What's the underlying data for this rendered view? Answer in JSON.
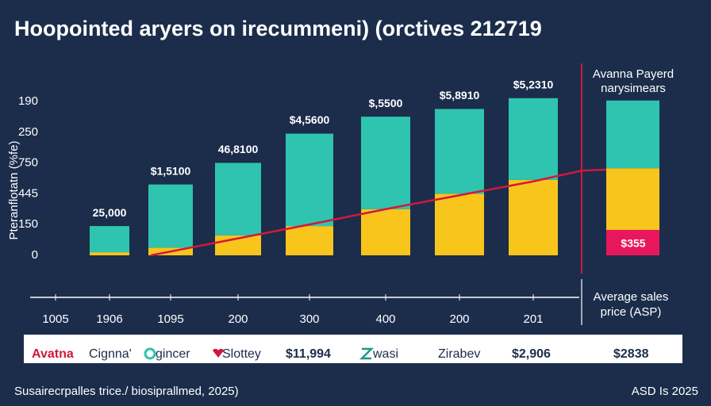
{
  "chart_data": {
    "type": "bar",
    "title": "Hoopointed aryers on irecummeni) (orctives 212719",
    "y_axis_label": "Pteranflotatn (%fe)",
    "y_axis_labels": [
      "190",
      "250",
      "750",
      "445",
      "150",
      "0"
    ],
    "categories": [
      "1005",
      "1906",
      "1095",
      "200",
      "300",
      "400",
      "200",
      "201"
    ],
    "ylim": [
      0,
      105
    ],
    "series": [
      {
        "color": "#f8c51c",
        "values": [
          null,
          2,
          5,
          13,
          19,
          30,
          40,
          49
        ]
      },
      {
        "color": "#2ec4b0",
        "values": [
          null,
          17,
          41,
          47,
          60,
          60,
          55,
          53
        ]
      }
    ],
    "bar_labels": [
      null,
      "25,000",
      "$1,5100",
      "46,8100",
      "$4,5600",
      "$,5500",
      "$5,8910",
      "$5,2310"
    ],
    "line": {
      "color": "#d3173b",
      "values": [
        null,
        null,
        0,
        11,
        20,
        30,
        39,
        48
      ]
    },
    "side_panel": {
      "title_lines": [
        "Avanna Payerd",
        "narysimears"
      ],
      "segments": [
        {
          "color": "#e8175d",
          "value": 16.5,
          "label": "$355"
        },
        {
          "color": "#f8c51c",
          "value": 40
        },
        {
          "color": "#2ec4b0",
          "value": 44
        }
      ],
      "line_value": 57,
      "caption_lines": [
        "Average sales",
        "price (ASP)"
      ]
    },
    "legend_strip": [
      "Avatna",
      "Cignna'",
      "gincer",
      "Slottey",
      "$11,994",
      "wasi",
      "Zirabev",
      "$2,906",
      "$2838"
    ],
    "footer_left": "Susairecrpalles trice./ biosiprallmed, 2025)",
    "footer_right": "ASD Is 2025"
  }
}
